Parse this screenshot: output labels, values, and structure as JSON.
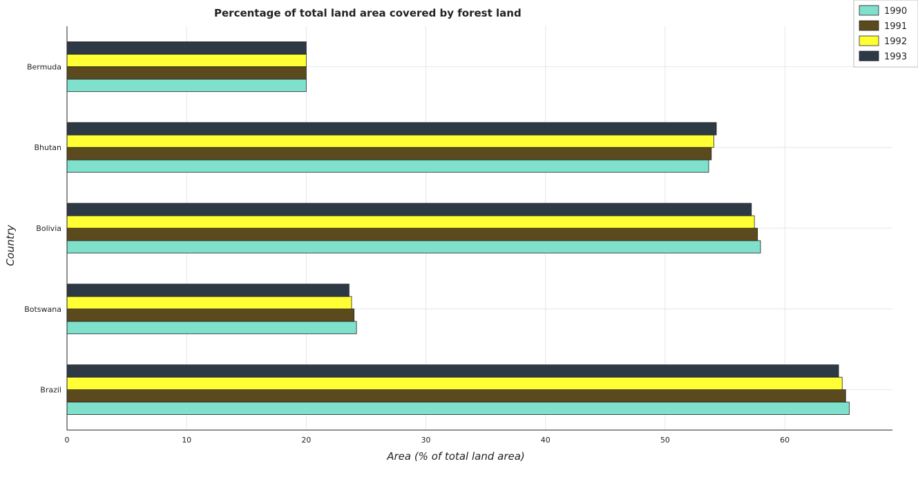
{
  "chart_data": {
    "type": "bar",
    "orientation": "horizontal",
    "title": "Percentage of total land area covered by forest land",
    "xlabel": "Area (% of total land area)",
    "ylabel": "Country",
    "categories": [
      "Bermuda",
      "Bhutan",
      "Bolivia",
      "Botswana",
      "Brazil"
    ],
    "series": [
      {
        "name": "1990",
        "color": "#7fe0cc",
        "values": [
          20.0,
          53.64,
          57.97,
          24.2,
          65.39
        ]
      },
      {
        "name": "1991",
        "color": "#5a4a1e",
        "values": [
          20.0,
          53.86,
          57.72,
          24.0,
          65.09
        ]
      },
      {
        "name": "1992",
        "color": "#ffff33",
        "values": [
          20.0,
          54.07,
          57.46,
          23.79,
          64.8
        ]
      },
      {
        "name": "1993",
        "color": "#2d3a45",
        "values": [
          20.0,
          54.28,
          57.21,
          23.58,
          64.5
        ]
      }
    ],
    "xlim": [
      0,
      69
    ],
    "xticks": [
      0,
      10,
      20,
      30,
      40,
      50,
      60
    ],
    "grid": true,
    "legend_position": "top-right"
  }
}
